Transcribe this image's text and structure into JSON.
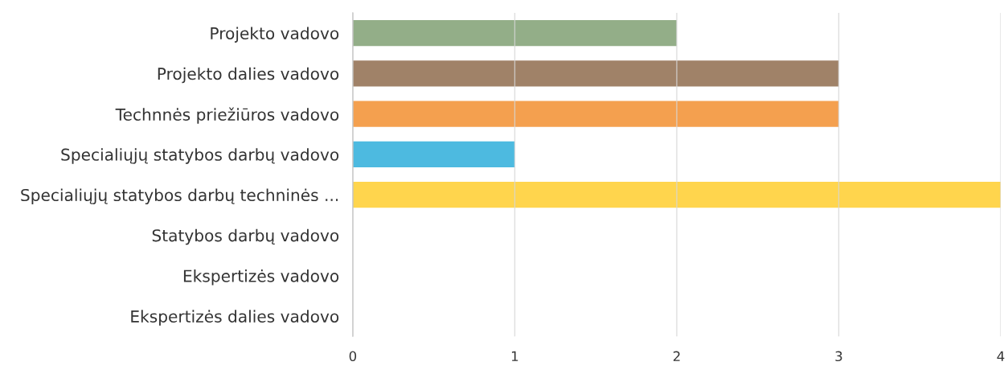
{
  "chart_data": {
    "type": "bar",
    "orientation": "horizontal",
    "categories": [
      "Projekto vadovo",
      "Projekto dalies vadovo",
      "Technnės priežiūros vadovo",
      "Specialiųjų statybos darbų vadovo",
      "Specialiųjų statybos darbų techninės ...",
      "Statybos darbų vadovo",
      "Ekspertizės vadovo",
      "Ekspertizės dalies vadovo"
    ],
    "values": [
      2,
      3,
      3,
      1,
      4,
      0,
      0,
      0
    ],
    "colors": [
      "#93ae88",
      "#a08268",
      "#f4a04f",
      "#4dbae0",
      "#ffd54d",
      null,
      null,
      null
    ],
    "xlim": [
      0,
      4
    ],
    "xticks": [
      0,
      1,
      2,
      3,
      4
    ],
    "grid": "x"
  }
}
